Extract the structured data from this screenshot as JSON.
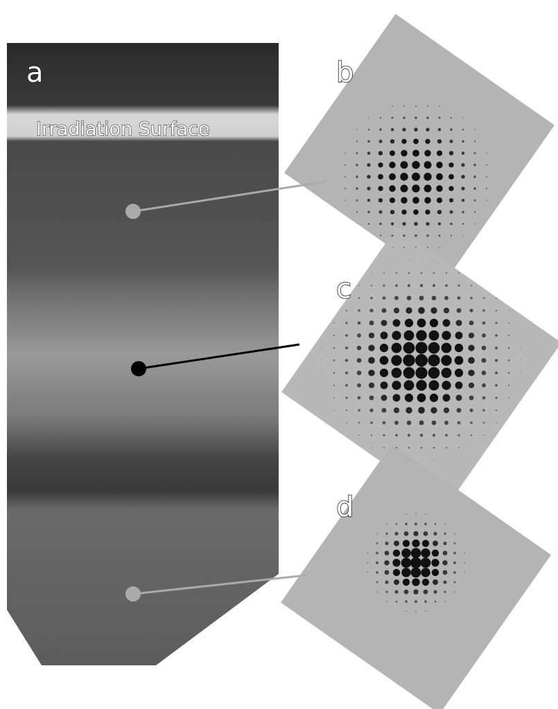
{
  "panels": {
    "a": {
      "label": "a",
      "annotation": "Irradiation Surface"
    },
    "b": {
      "label": "b"
    },
    "c": {
      "label": "c"
    },
    "d": {
      "label": "d"
    }
  }
}
